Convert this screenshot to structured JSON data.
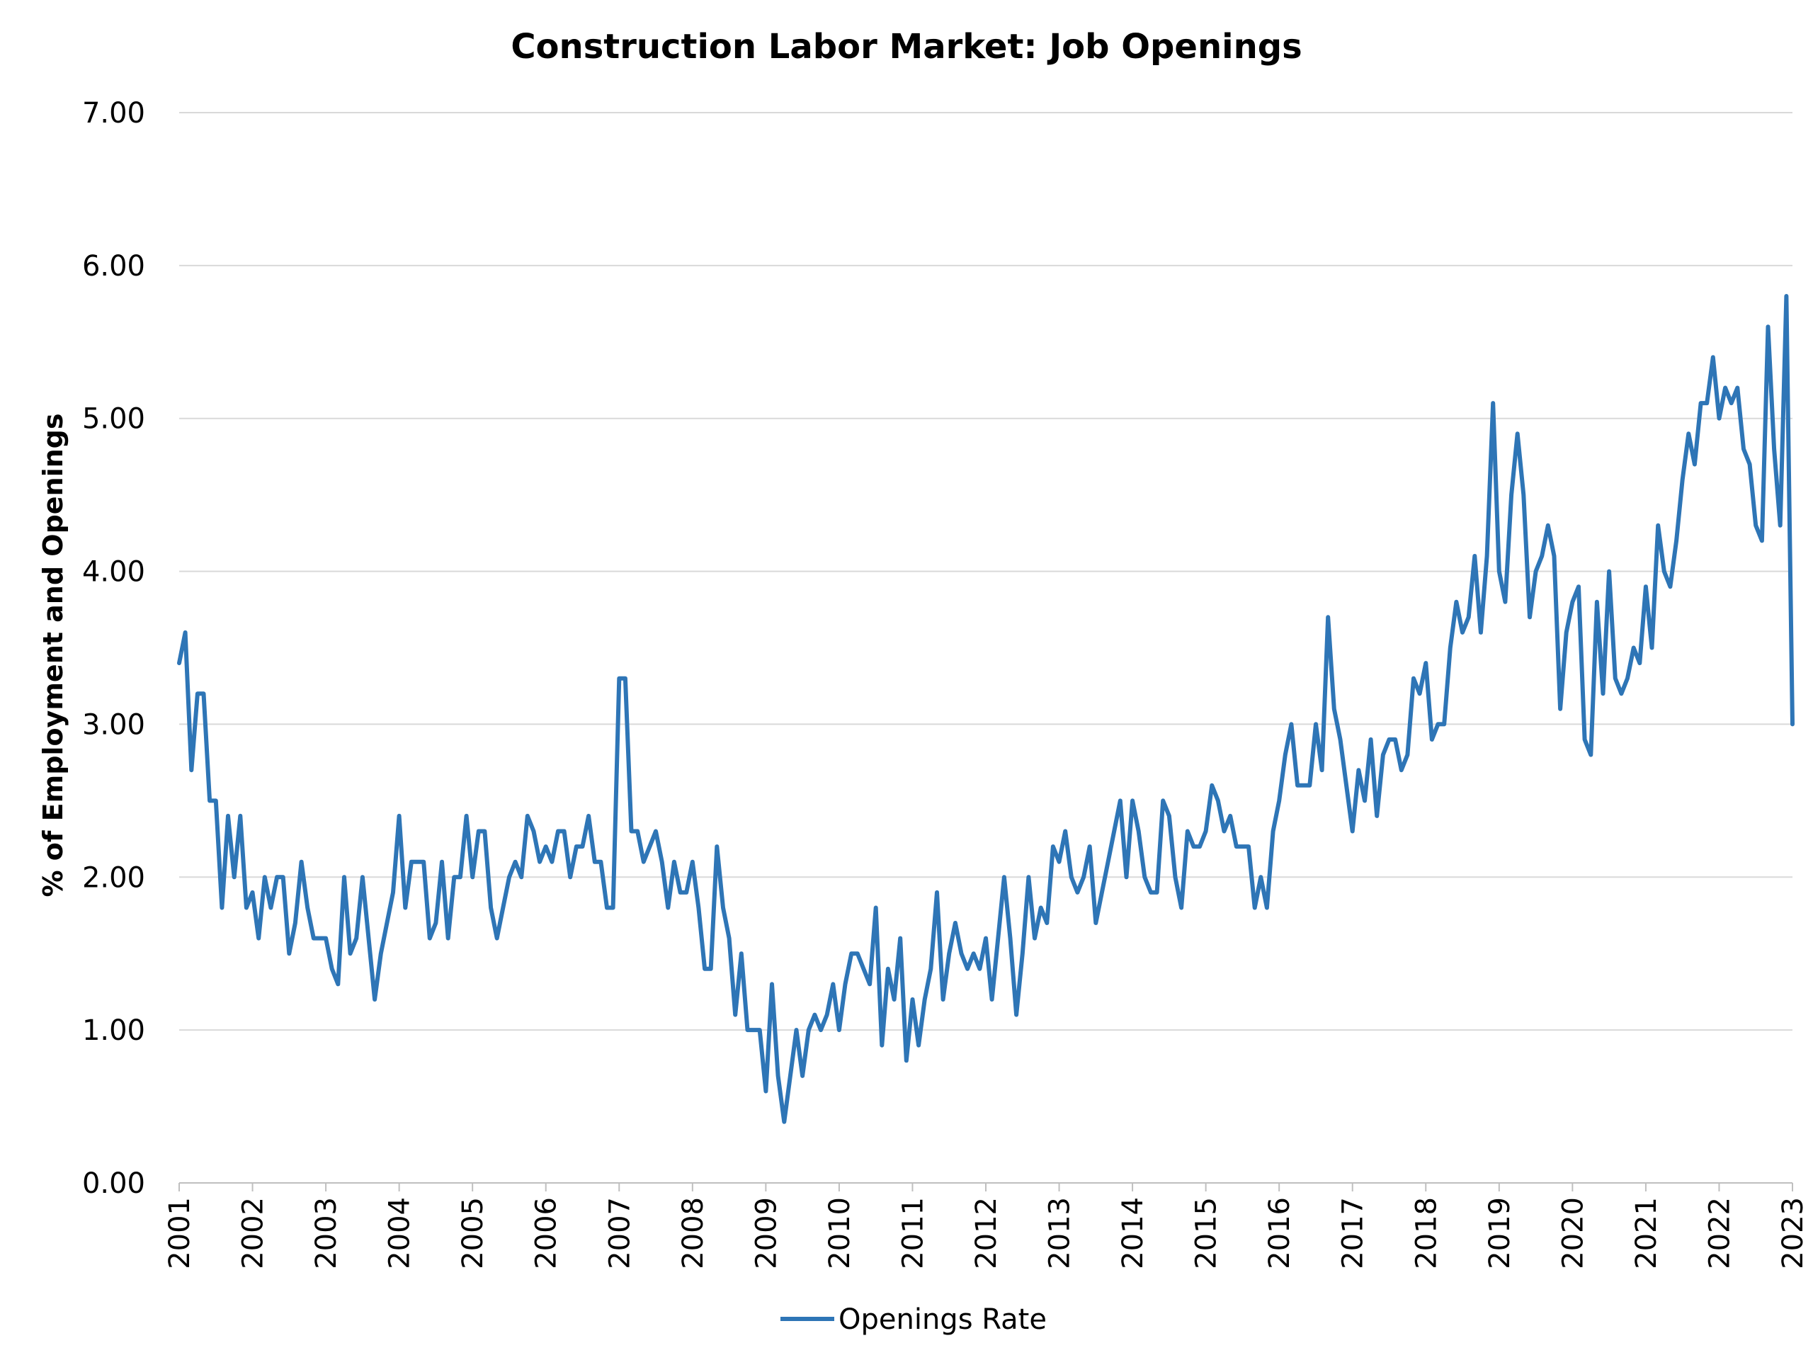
{
  "chart_data": {
    "type": "line",
    "title": "Construction Labor Market: Job Openings",
    "ylabel": "% of Employment and Openings",
    "xlabel": "",
    "ylim": [
      0,
      7
    ],
    "yticks": [
      "0.00",
      "1.00",
      "2.00",
      "3.00",
      "4.00",
      "5.00",
      "6.00",
      "7.00"
    ],
    "year_ticks": [
      "2001",
      "2002",
      "2003",
      "2004",
      "2005",
      "2006",
      "2007",
      "2008",
      "2009",
      "2010",
      "2011",
      "2012",
      "2013",
      "2014",
      "2015",
      "2016",
      "2017",
      "2018",
      "2019",
      "2020",
      "2021",
      "2022",
      "2023"
    ],
    "grid": true,
    "legend": "bottom-center",
    "x_start": "2001-01",
    "x_frequency": "monthly",
    "series": [
      {
        "name": "Openings Rate",
        "color": "#2e75b6",
        "values": [
          3.4,
          3.6,
          2.7,
          3.2,
          3.2,
          2.5,
          2.5,
          1.8,
          2.4,
          2.0,
          2.4,
          1.8,
          1.9,
          1.6,
          2.0,
          1.8,
          2.0,
          2.0,
          1.5,
          1.7,
          2.1,
          1.8,
          1.6,
          1.6,
          1.6,
          1.4,
          1.3,
          2.0,
          1.5,
          1.6,
          2.0,
          1.6,
          1.2,
          1.5,
          1.7,
          1.9,
          2.4,
          1.8,
          2.1,
          2.1,
          2.1,
          1.6,
          1.7,
          2.1,
          1.6,
          2.0,
          2.0,
          2.4,
          2.0,
          2.3,
          2.3,
          1.8,
          1.6,
          1.8,
          2.0,
          2.1,
          2.0,
          2.4,
          2.3,
          2.1,
          2.2,
          2.1,
          2.3,
          2.3,
          2.0,
          2.2,
          2.2,
          2.4,
          2.1,
          2.1,
          1.8,
          1.8,
          3.3,
          3.3,
          2.3,
          2.3,
          2.1,
          2.2,
          2.3,
          2.1,
          1.8,
          2.1,
          1.9,
          1.9,
          2.1,
          1.8,
          1.4,
          1.4,
          2.2,
          1.8,
          1.6,
          1.1,
          1.5,
          1.0,
          1.0,
          1.0,
          0.6,
          1.3,
          0.7,
          0.4,
          0.7,
          1.0,
          0.7,
          1.0,
          1.1,
          1.0,
          1.1,
          1.3,
          1.0,
          1.3,
          1.5,
          1.5,
          1.4,
          1.3,
          1.8,
          0.9,
          1.4,
          1.2,
          1.6,
          0.8,
          1.2,
          0.9,
          1.2,
          1.4,
          1.9,
          1.2,
          1.5,
          1.7,
          1.5,
          1.4,
          1.5,
          1.4,
          1.6,
          1.2,
          1.6,
          2.0,
          1.6,
          1.1,
          1.5,
          2.0,
          1.6,
          1.8,
          1.7,
          2.2,
          2.1,
          2.3,
          2.0,
          1.9,
          2.0,
          2.2,
          1.7,
          1.9,
          2.1,
          2.3,
          2.5,
          2.0,
          2.5,
          2.3,
          2.0,
          1.9,
          1.9,
          2.5,
          2.4,
          2.0,
          1.8,
          2.3,
          2.2,
          2.2,
          2.3,
          2.6,
          2.5,
          2.3,
          2.4,
          2.2,
          2.2,
          2.2,
          1.8,
          2.0,
          1.8,
          2.3,
          2.5,
          2.8,
          3.0,
          2.6,
          2.6,
          2.6,
          3.0,
          2.7,
          3.7,
          3.1,
          2.9,
          2.6,
          2.3,
          2.7,
          2.5,
          2.9,
          2.4,
          2.8,
          2.9,
          2.9,
          2.7,
          2.8,
          3.3,
          3.2,
          3.4,
          2.9,
          3.0,
          3.0,
          3.5,
          3.8,
          3.6,
          3.7,
          4.1,
          3.6,
          4.1,
          5.1,
          4.0,
          3.8,
          4.5,
          4.9,
          4.5,
          3.7,
          4.0,
          4.1,
          4.3,
          4.1,
          3.1,
          3.6,
          3.8,
          3.9,
          2.9,
          2.8,
          3.8,
          3.2,
          4.0,
          3.3,
          3.2,
          3.3,
          3.5,
          3.4,
          3.9,
          3.5,
          4.3,
          4.0,
          3.9,
          4.2,
          4.6,
          4.9,
          4.7,
          5.1,
          5.1,
          5.4,
          5.0,
          5.2,
          5.1,
          5.2,
          4.8,
          4.7,
          4.3,
          4.2,
          5.6,
          4.8,
          4.3,
          5.8,
          3.0
        ]
      }
    ]
  }
}
